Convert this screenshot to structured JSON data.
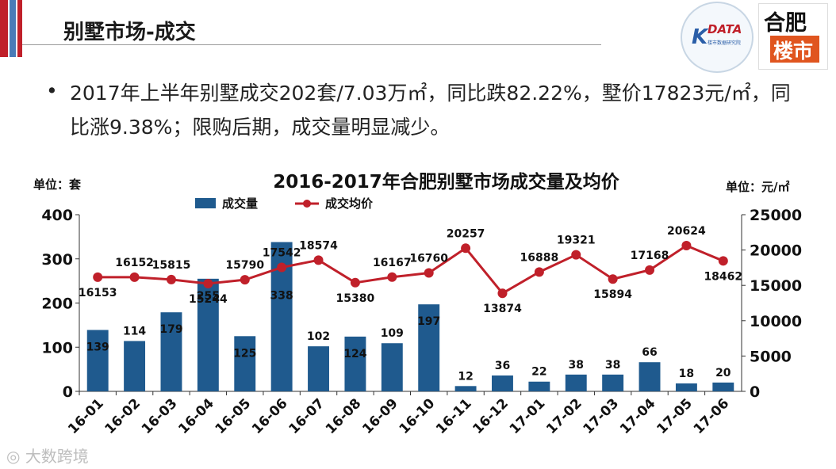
{
  "slide": {
    "title": "别墅市场-成交",
    "bullet_text": "2017年上半年别墅成交202套/7.03万㎡，同比跌82.22%，墅价17823元/㎡，同比涨9.38%；限购后期，成交量明显减少。",
    "logo_kdata": "DATA",
    "logo_kdata_letter": "K",
    "logo_kdata_sub": "楼市数据研究院",
    "logo_hefei_top": "合肥",
    "logo_hefei_bottom": "楼市",
    "watermark": "大数跨境"
  },
  "chart_data": {
    "type": "bar+line",
    "title": "2016-2017年合肥别墅市场成交量及均价",
    "ylabel_left": "单位：套",
    "ylabel_right": "单位：元/㎡",
    "categories": [
      "16-01",
      "16-02",
      "16-03",
      "16-04",
      "16-05",
      "16-06",
      "16-07",
      "16-08",
      "16-09",
      "16-10",
      "16-11",
      "16-12",
      "17-01",
      "17-02",
      "17-03",
      "17-04",
      "17-05",
      "17-06"
    ],
    "series": [
      {
        "name": "成交量",
        "type": "bar",
        "axis": "left",
        "color": "#1f5a8e",
        "values": [
          139,
          114,
          179,
          255,
          125,
          338,
          102,
          124,
          109,
          197,
          12,
          36,
          22,
          38,
          38,
          66,
          18,
          20
        ]
      },
      {
        "name": "成交均价",
        "type": "line",
        "axis": "right",
        "color": "#c0202a",
        "values": [
          16153,
          16152,
          15815,
          15244,
          15790,
          17542,
          18574,
          15380,
          16167,
          16760,
          20257,
          13874,
          16888,
          19321,
          15894,
          17168,
          20624,
          18462
        ]
      }
    ],
    "ylim_left": [
      0,
      400
    ],
    "yticks_left": [
      0,
      100,
      200,
      300,
      400
    ],
    "ylim_right": [
      0,
      25000
    ],
    "yticks_right": [
      0,
      5000,
      10000,
      15000,
      20000,
      25000
    ],
    "legend_position": "top-left",
    "grid": false
  }
}
